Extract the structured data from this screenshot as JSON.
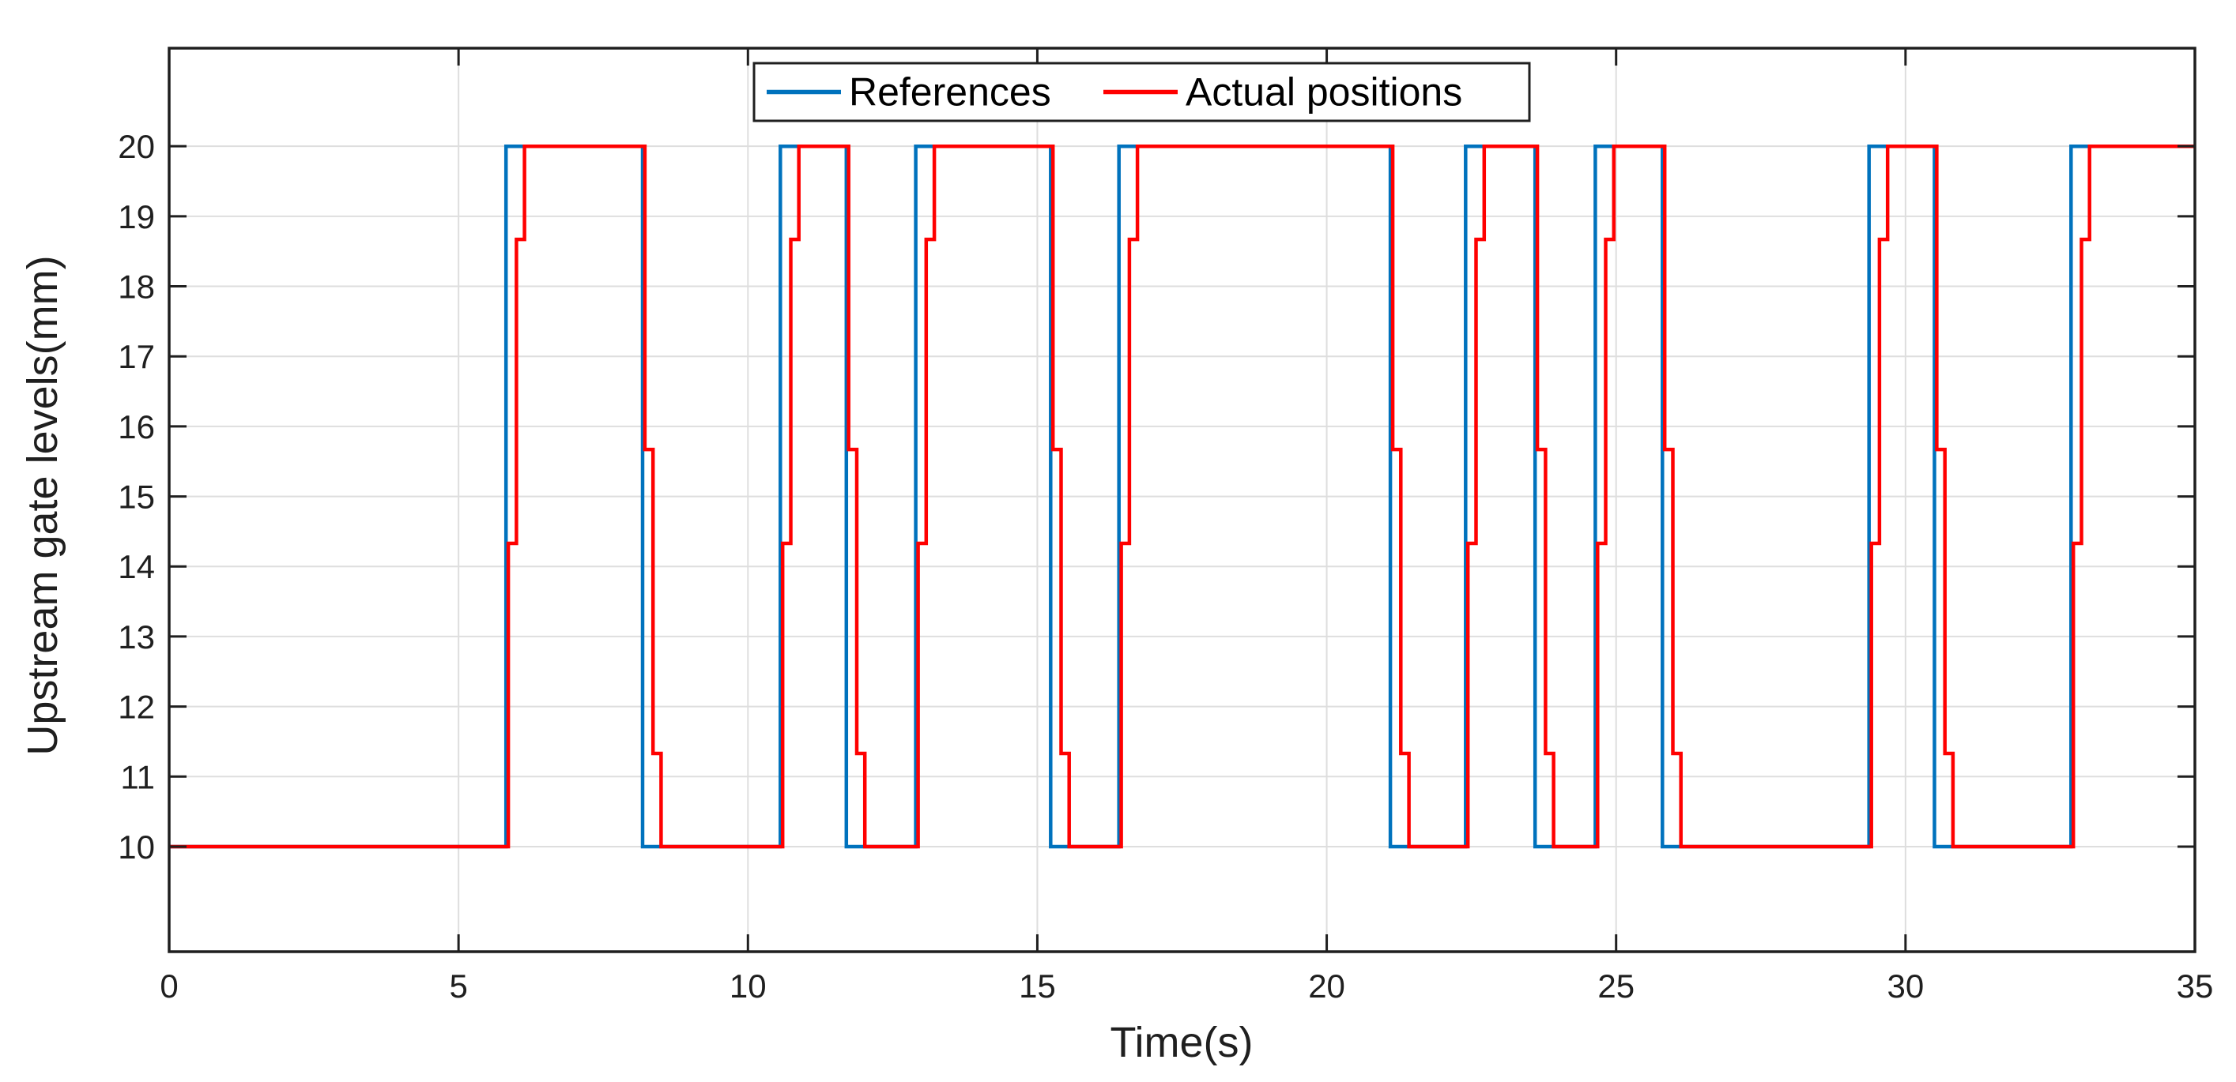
{
  "figure": {
    "background_color": "#ffffff",
    "axis_color": "#1f1f1f",
    "grid_color": "#dedede",
    "plot_background": "#ffffff"
  },
  "chart_data": {
    "type": "line",
    "subtype": "step",
    "title": "",
    "xlabel": "Time(s)",
    "ylabel": "Upstream gate levels(mm)",
    "xlim": [
      0,
      35
    ],
    "ylim": [
      8.5,
      21.4
    ],
    "xticks": [
      0,
      5,
      10,
      15,
      20,
      25,
      30,
      35
    ],
    "yticks": [
      10,
      11,
      12,
      13,
      14,
      15,
      16,
      17,
      18,
      19,
      20
    ],
    "grid": true,
    "box": true,
    "legend": {
      "position": "top-center",
      "border_color": "#1f1f1f",
      "background": "#ffffff"
    },
    "series": [
      {
        "name": "References",
        "color": "#0072BD",
        "linewidth": 4.5,
        "points": [
          [
            0,
            10
          ],
          [
            5.82,
            10
          ],
          [
            5.82,
            20
          ],
          [
            8.18,
            20
          ],
          [
            8.18,
            10
          ],
          [
            10.56,
            10
          ],
          [
            10.56,
            20
          ],
          [
            11.7,
            20
          ],
          [
            11.7,
            10
          ],
          [
            12.9,
            10
          ],
          [
            12.9,
            20
          ],
          [
            15.23,
            20
          ],
          [
            15.23,
            10
          ],
          [
            16.41,
            10
          ],
          [
            16.41,
            20
          ],
          [
            21.1,
            20
          ],
          [
            21.1,
            10
          ],
          [
            22.4,
            10
          ],
          [
            22.4,
            20
          ],
          [
            23.6,
            20
          ],
          [
            23.6,
            10
          ],
          [
            24.64,
            10
          ],
          [
            24.64,
            20
          ],
          [
            25.8,
            20
          ],
          [
            25.8,
            10
          ],
          [
            29.37,
            10
          ],
          [
            29.37,
            20
          ],
          [
            30.5,
            20
          ],
          [
            30.5,
            10
          ],
          [
            32.86,
            10
          ],
          [
            32.86,
            20
          ],
          [
            35,
            20
          ]
        ]
      },
      {
        "name": "Actual positions",
        "color": "#FF0000",
        "linewidth": 4.5,
        "points": [
          [
            0,
            10
          ],
          [
            5.86,
            10
          ],
          [
            5.86,
            14.33
          ],
          [
            6.0,
            14.33
          ],
          [
            6.0,
            18.67
          ],
          [
            6.14,
            18.67
          ],
          [
            6.14,
            20
          ],
          [
            8.22,
            20
          ],
          [
            8.22,
            15.67
          ],
          [
            8.36,
            15.67
          ],
          [
            8.36,
            11.33
          ],
          [
            8.5,
            11.33
          ],
          [
            8.5,
            10
          ],
          [
            10.6,
            10
          ],
          [
            10.6,
            14.33
          ],
          [
            10.74,
            14.33
          ],
          [
            10.74,
            18.67
          ],
          [
            10.88,
            18.67
          ],
          [
            10.88,
            20
          ],
          [
            11.74,
            20
          ],
          [
            11.74,
            15.67
          ],
          [
            11.88,
            15.67
          ],
          [
            11.88,
            11.33
          ],
          [
            12.02,
            11.33
          ],
          [
            12.02,
            10
          ],
          [
            12.94,
            10
          ],
          [
            12.94,
            14.33
          ],
          [
            13.08,
            14.33
          ],
          [
            13.08,
            18.67
          ],
          [
            13.22,
            18.67
          ],
          [
            13.22,
            20
          ],
          [
            15.27,
            20
          ],
          [
            15.27,
            15.67
          ],
          [
            15.41,
            15.67
          ],
          [
            15.41,
            11.33
          ],
          [
            15.55,
            11.33
          ],
          [
            15.55,
            10
          ],
          [
            16.45,
            10
          ],
          [
            16.45,
            14.33
          ],
          [
            16.59,
            14.33
          ],
          [
            16.59,
            18.67
          ],
          [
            16.73,
            18.67
          ],
          [
            16.73,
            20
          ],
          [
            21.14,
            20
          ],
          [
            21.14,
            15.67
          ],
          [
            21.28,
            15.67
          ],
          [
            21.28,
            11.33
          ],
          [
            21.42,
            11.33
          ],
          [
            21.42,
            10
          ],
          [
            22.44,
            10
          ],
          [
            22.44,
            14.33
          ],
          [
            22.58,
            14.33
          ],
          [
            22.58,
            18.67
          ],
          [
            22.72,
            18.67
          ],
          [
            22.72,
            20
          ],
          [
            23.64,
            20
          ],
          [
            23.64,
            15.67
          ],
          [
            23.78,
            15.67
          ],
          [
            23.78,
            11.33
          ],
          [
            23.92,
            11.33
          ],
          [
            23.92,
            10
          ],
          [
            24.68,
            10
          ],
          [
            24.68,
            14.33
          ],
          [
            24.82,
            14.33
          ],
          [
            24.82,
            18.67
          ],
          [
            24.96,
            18.67
          ],
          [
            24.96,
            20
          ],
          [
            25.84,
            20
          ],
          [
            25.84,
            15.67
          ],
          [
            25.98,
            15.67
          ],
          [
            25.98,
            11.33
          ],
          [
            26.12,
            11.33
          ],
          [
            26.12,
            10
          ],
          [
            29.41,
            10
          ],
          [
            29.41,
            14.33
          ],
          [
            29.55,
            14.33
          ],
          [
            29.55,
            18.67
          ],
          [
            29.69,
            18.67
          ],
          [
            29.69,
            20
          ],
          [
            30.54,
            20
          ],
          [
            30.54,
            15.67
          ],
          [
            30.68,
            15.67
          ],
          [
            30.68,
            11.33
          ],
          [
            30.82,
            11.33
          ],
          [
            30.82,
            10
          ],
          [
            32.9,
            10
          ],
          [
            32.9,
            14.33
          ],
          [
            33.04,
            14.33
          ],
          [
            33.04,
            18.67
          ],
          [
            33.18,
            18.67
          ],
          [
            33.18,
            20
          ],
          [
            35,
            20
          ]
        ]
      }
    ]
  }
}
